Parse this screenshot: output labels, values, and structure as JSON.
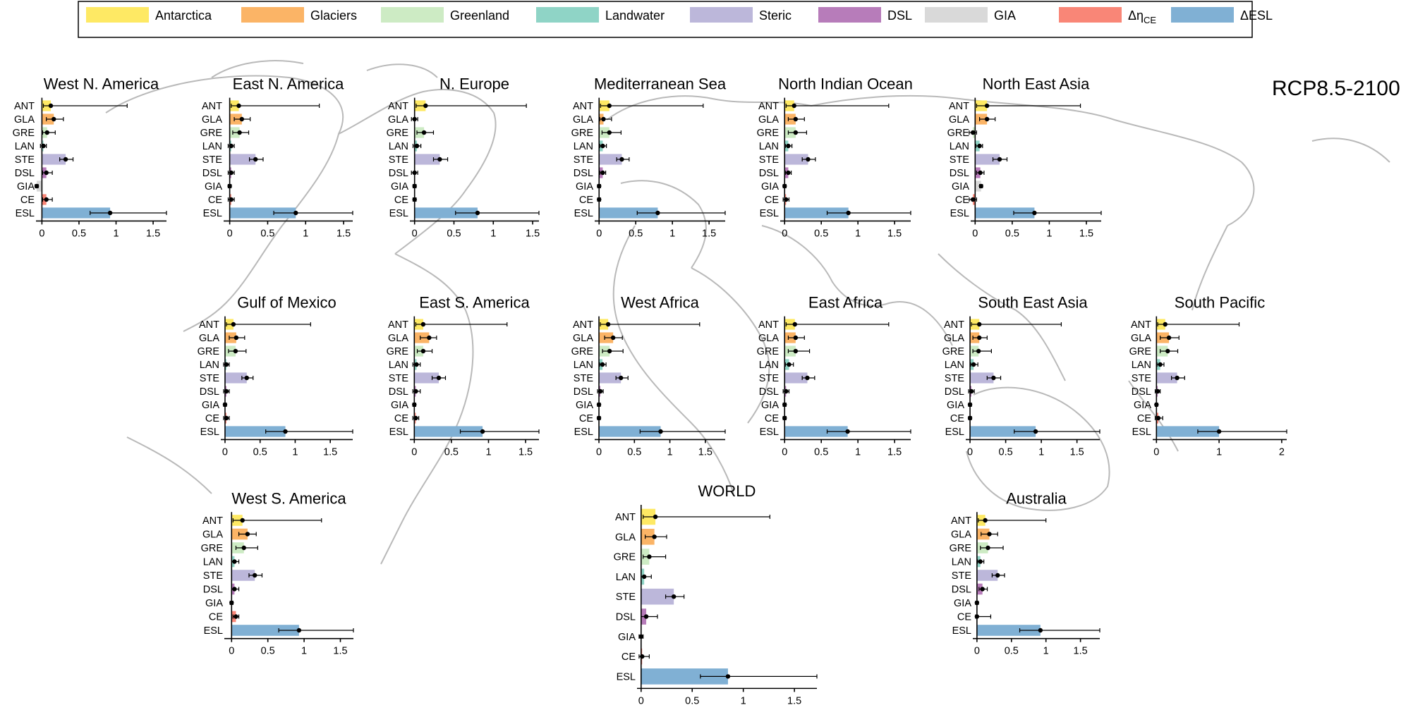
{
  "scenario": "RCP8.5-2100",
  "colors": {
    "ANT": "#fee964",
    "GLA": "#fbb466",
    "GRE": "#cdebc4",
    "LAN": "#8fd4c6",
    "STE": "#bcb7da",
    "DSL": "#b77cba",
    "GIA": "#d9d9d9",
    "CE": "#f98677",
    "ESL": "#80b0d4"
  },
  "legend": [
    {
      "key": "ANT",
      "label": "Antarctica"
    },
    {
      "key": "GLA",
      "label": "Glaciers"
    },
    {
      "key": "GRE",
      "label": "Greenland"
    },
    {
      "key": "LAN",
      "label": "Landwater"
    },
    {
      "key": "STE",
      "label": "Steric"
    },
    {
      "key": "DSL",
      "label": "DSL"
    },
    {
      "key": "GIA",
      "label": "GIA"
    },
    {
      "key": "CE",
      "label": "Δη",
      "sub": "CE"
    },
    {
      "key": "ESL",
      "label": "ΔESL"
    }
  ],
  "chart_data": {
    "type": "bar",
    "orientation": "horizontal",
    "categories": [
      "ANT",
      "GLA",
      "GRE",
      "LAN",
      "STE",
      "DSL",
      "GIA",
      "CE",
      "ESL"
    ],
    "panels": [
      {
        "title": "West N. America",
        "xticks": [
          0,
          0.5,
          1,
          1.5
        ],
        "xlim": [
          -0.08,
          1.68
        ],
        "values": [
          0.12,
          0.16,
          0.07,
          0.02,
          0.32,
          0.06,
          -0.07,
          0.06,
          0.92
        ],
        "lo": [
          0.02,
          0.06,
          0.01,
          -0.02,
          0.24,
          0.01,
          -0.09,
          0.01,
          0.65
        ],
        "hi": [
          1.15,
          0.29,
          0.18,
          0.06,
          0.42,
          0.14,
          -0.05,
          0.14,
          1.68
        ]
      },
      {
        "title": "East N. America",
        "xticks": [
          0,
          0.5,
          1,
          1.5
        ],
        "xlim": [
          -0.08,
          1.62
        ],
        "values": [
          0.12,
          0.16,
          0.13,
          0.02,
          0.34,
          0.02,
          0.0,
          0.02,
          0.87
        ],
        "lo": [
          0.02,
          0.06,
          0.04,
          -0.02,
          0.26,
          -0.02,
          -0.02,
          -0.02,
          0.58
        ],
        "hi": [
          1.18,
          0.27,
          0.25,
          0.06,
          0.44,
          0.06,
          0.02,
          0.06,
          1.62
        ]
      },
      {
        "title": "N. Europe",
        "xticks": [
          0,
          0.5,
          1,
          1.5
        ],
        "xlim": [
          -0.06,
          1.58
        ],
        "values": [
          0.14,
          0.0,
          0.12,
          0.03,
          0.32,
          0.0,
          0.0,
          0.0,
          0.8
        ],
        "lo": [
          0.02,
          -0.04,
          0.03,
          -0.02,
          0.24,
          -0.04,
          -0.02,
          -0.02,
          0.52
        ],
        "hi": [
          1.42,
          0.04,
          0.24,
          0.08,
          0.42,
          0.04,
          0.02,
          0.02,
          1.58
        ]
      },
      {
        "title": "Mediterranean Sea",
        "xticks": [
          0,
          0.5,
          1,
          1.5
        ],
        "xlim": [
          -0.06,
          1.72
        ],
        "values": [
          0.14,
          0.06,
          0.14,
          0.05,
          0.31,
          0.05,
          0.0,
          0.0,
          0.8
        ],
        "lo": [
          0.02,
          0.01,
          0.04,
          0.01,
          0.24,
          0.01,
          -0.02,
          -0.02,
          0.52
        ],
        "hi": [
          1.42,
          0.17,
          0.3,
          0.1,
          0.41,
          0.09,
          0.02,
          0.02,
          1.72
        ]
      },
      {
        "title": "North Indian Ocean",
        "xticks": [
          0,
          0.5,
          1,
          1.5
        ],
        "xlim": [
          -0.06,
          1.72
        ],
        "values": [
          0.13,
          0.15,
          0.15,
          0.05,
          0.32,
          0.05,
          0.0,
          0.02,
          0.87
        ],
        "lo": [
          0.02,
          0.05,
          0.05,
          0.01,
          0.24,
          0.01,
          -0.02,
          -0.02,
          0.58
        ],
        "hi": [
          1.42,
          0.27,
          0.3,
          0.1,
          0.42,
          0.09,
          0.02,
          0.06,
          1.72
        ]
      },
      {
        "title": "North East Asia",
        "xticks": [
          0,
          0.5,
          1,
          1.5
        ],
        "xlim": [
          -0.06,
          1.7
        ],
        "values": [
          0.16,
          0.16,
          -0.03,
          0.06,
          0.33,
          0.07,
          0.08,
          -0.03,
          0.8
        ],
        "lo": [
          0.02,
          0.06,
          -0.08,
          0.01,
          0.24,
          0.02,
          0.06,
          -0.08,
          0.52
        ],
        "hi": [
          1.42,
          0.27,
          0.02,
          0.1,
          0.43,
          0.12,
          0.1,
          0.02,
          1.7
        ]
      },
      {
        "title": "Gulf of Mexico",
        "xticks": [
          0,
          0.5,
          1,
          1.5
        ],
        "xlim": [
          -0.06,
          1.82
        ],
        "values": [
          0.12,
          0.16,
          0.15,
          0.02,
          0.31,
          0.02,
          0.0,
          0.02,
          0.86
        ],
        "lo": [
          0.02,
          0.06,
          0.05,
          -0.02,
          0.24,
          -0.02,
          -0.02,
          -0.02,
          0.58
        ],
        "hi": [
          1.22,
          0.28,
          0.3,
          0.06,
          0.4,
          0.06,
          0.02,
          0.06,
          1.82
        ]
      },
      {
        "title": "East S. America",
        "xticks": [
          0,
          0.5,
          1,
          1.5
        ],
        "xlim": [
          -0.06,
          1.68
        ],
        "values": [
          0.12,
          0.2,
          0.12,
          0.03,
          0.33,
          0.02,
          0.0,
          0.02,
          0.92
        ],
        "lo": [
          0.02,
          0.08,
          0.04,
          -0.02,
          0.24,
          -0.02,
          -0.02,
          -0.02,
          0.62
        ],
        "hi": [
          1.25,
          0.3,
          0.24,
          0.08,
          0.42,
          0.08,
          0.02,
          0.06,
          1.68
        ]
      },
      {
        "title": "West Africa",
        "xticks": [
          0,
          0.5,
          1,
          1.5
        ],
        "xlim": [
          -0.06,
          1.78
        ],
        "values": [
          0.13,
          0.2,
          0.15,
          0.05,
          0.31,
          0.02,
          0.0,
          0.0,
          0.87
        ],
        "lo": [
          0.02,
          0.08,
          0.05,
          0.01,
          0.24,
          -0.02,
          -0.02,
          -0.02,
          0.58
        ],
        "hi": [
          1.42,
          0.33,
          0.34,
          0.1,
          0.41,
          0.06,
          0.02,
          0.02,
          1.78
        ]
      },
      {
        "title": "East Africa",
        "xticks": [
          0,
          0.5,
          1,
          1.5
        ],
        "xlim": [
          -0.06,
          1.72
        ],
        "values": [
          0.14,
          0.15,
          0.15,
          0.06,
          0.31,
          0.02,
          0.0,
          0.0,
          0.86
        ],
        "lo": [
          0.02,
          0.05,
          0.05,
          0.01,
          0.24,
          -0.02,
          -0.02,
          -0.02,
          0.58
        ],
        "hi": [
          1.42,
          0.27,
          0.34,
          0.12,
          0.41,
          0.06,
          0.02,
          0.02,
          1.72
        ]
      },
      {
        "title": "South East Asia",
        "xticks": [
          0,
          0.5,
          1,
          1.5
        ],
        "xlim": [
          -0.06,
          1.82
        ],
        "values": [
          0.13,
          0.13,
          0.12,
          0.05,
          0.33,
          0.02,
          0.0,
          0.0,
          0.92
        ],
        "lo": [
          0.02,
          0.04,
          0.04,
          0.01,
          0.24,
          -0.02,
          -0.02,
          -0.02,
          0.62
        ],
        "hi": [
          1.28,
          0.24,
          0.3,
          0.11,
          0.43,
          0.06,
          0.02,
          0.02,
          1.82
        ]
      },
      {
        "title": "South Pacific",
        "xticks": [
          0,
          1,
          2
        ],
        "xlim": [
          -0.06,
          2.08
        ],
        "values": [
          0.14,
          0.2,
          0.18,
          0.06,
          0.33,
          0.02,
          0.0,
          0.03,
          1.0
        ],
        "lo": [
          0.02,
          0.06,
          0.06,
          0.01,
          0.24,
          -0.02,
          -0.02,
          -0.02,
          0.66
        ],
        "hi": [
          1.32,
          0.36,
          0.34,
          0.12,
          0.45,
          0.06,
          0.02,
          0.1,
          2.08
        ]
      },
      {
        "title": "West S. America",
        "xticks": [
          0,
          0.5,
          1,
          1.5
        ],
        "xlim": [
          -0.1,
          1.68
        ],
        "values": [
          0.15,
          0.22,
          0.17,
          0.04,
          0.32,
          0.04,
          0.0,
          0.06,
          0.93
        ],
        "lo": [
          0.02,
          0.1,
          0.06,
          0.0,
          0.24,
          0.0,
          -0.02,
          0.02,
          0.65
        ],
        "hi": [
          1.24,
          0.34,
          0.36,
          0.1,
          0.42,
          0.1,
          0.02,
          0.1,
          1.68
        ]
      },
      {
        "title": "WORLD",
        "xticks": [
          0,
          0.5,
          1,
          1.5
        ],
        "xlim": [
          -0.04,
          1.72
        ],
        "values": [
          0.14,
          0.13,
          0.08,
          0.03,
          0.32,
          0.05,
          0.0,
          0.01,
          0.85
        ],
        "lo": [
          0.02,
          0.04,
          0.02,
          0.0,
          0.24,
          0.0,
          -0.02,
          -0.02,
          0.58
        ],
        "hi": [
          1.26,
          0.25,
          0.24,
          0.1,
          0.42,
          0.16,
          0.02,
          0.08,
          1.72
        ]
      },
      {
        "title": "Australia",
        "xticks": [
          0,
          0.5,
          1,
          1.5
        ],
        "xlim": [
          -0.06,
          1.78
        ],
        "values": [
          0.12,
          0.18,
          0.16,
          0.05,
          0.3,
          0.08,
          0.0,
          0.0,
          0.92
        ],
        "lo": [
          0.02,
          0.06,
          0.05,
          0.01,
          0.22,
          0.03,
          -0.02,
          -0.02,
          0.62
        ],
        "hi": [
          1.0,
          0.3,
          0.38,
          0.1,
          0.4,
          0.15,
          0.02,
          0.2,
          1.78
        ]
      }
    ]
  }
}
